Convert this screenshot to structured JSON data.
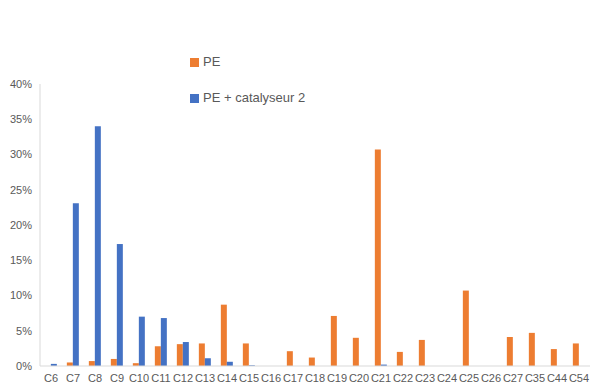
{
  "chart_data": {
    "type": "bar",
    "categories": [
      "C6",
      "C7",
      "C8",
      "C9",
      "C10",
      "C11",
      "C12",
      "C13",
      "C14",
      "C15",
      "C16",
      "C17",
      "C18",
      "C19",
      "C20",
      "C21",
      "C22",
      "C23",
      "C24",
      "C25",
      "C26",
      "C27",
      "C35",
      "C44",
      "C54"
    ],
    "series": [
      {
        "name": "PE",
        "color": "#ed7d31",
        "values": [
          0,
          0.5,
          0.7,
          1.0,
          0.4,
          2.8,
          3.1,
          3.2,
          8.7,
          3.2,
          0,
          2.1,
          1.2,
          7.1,
          4.0,
          30.7,
          2.0,
          3.7,
          0,
          10.7,
          0,
          4.1,
          4.7,
          2.4,
          3.2
        ]
      },
      {
        "name": "PE + catalyseur 2",
        "color": "#4472c4",
        "values": [
          0.3,
          23.1,
          34.0,
          17.3,
          7.0,
          6.8,
          3.4,
          1.1,
          0.6,
          0.1,
          0,
          0,
          0,
          0,
          0,
          0.2,
          0,
          0,
          0,
          0,
          0,
          0,
          0,
          0,
          0
        ]
      }
    ],
    "ylim": [
      0,
      40
    ],
    "yticks": [
      {
        "value": 0,
        "label": "0%"
      },
      {
        "value": 5,
        "label": "5%"
      },
      {
        "value": 10,
        "label": "10%"
      },
      {
        "value": 15,
        "label": "15%"
      },
      {
        "value": 20,
        "label": "20%"
      },
      {
        "value": 25,
        "label": "25%"
      },
      {
        "value": 30,
        "label": "30%"
      },
      {
        "value": 35,
        "label": "35%"
      },
      {
        "value": 40,
        "label": "40%"
      }
    ],
    "grid": false,
    "legend": "top"
  }
}
